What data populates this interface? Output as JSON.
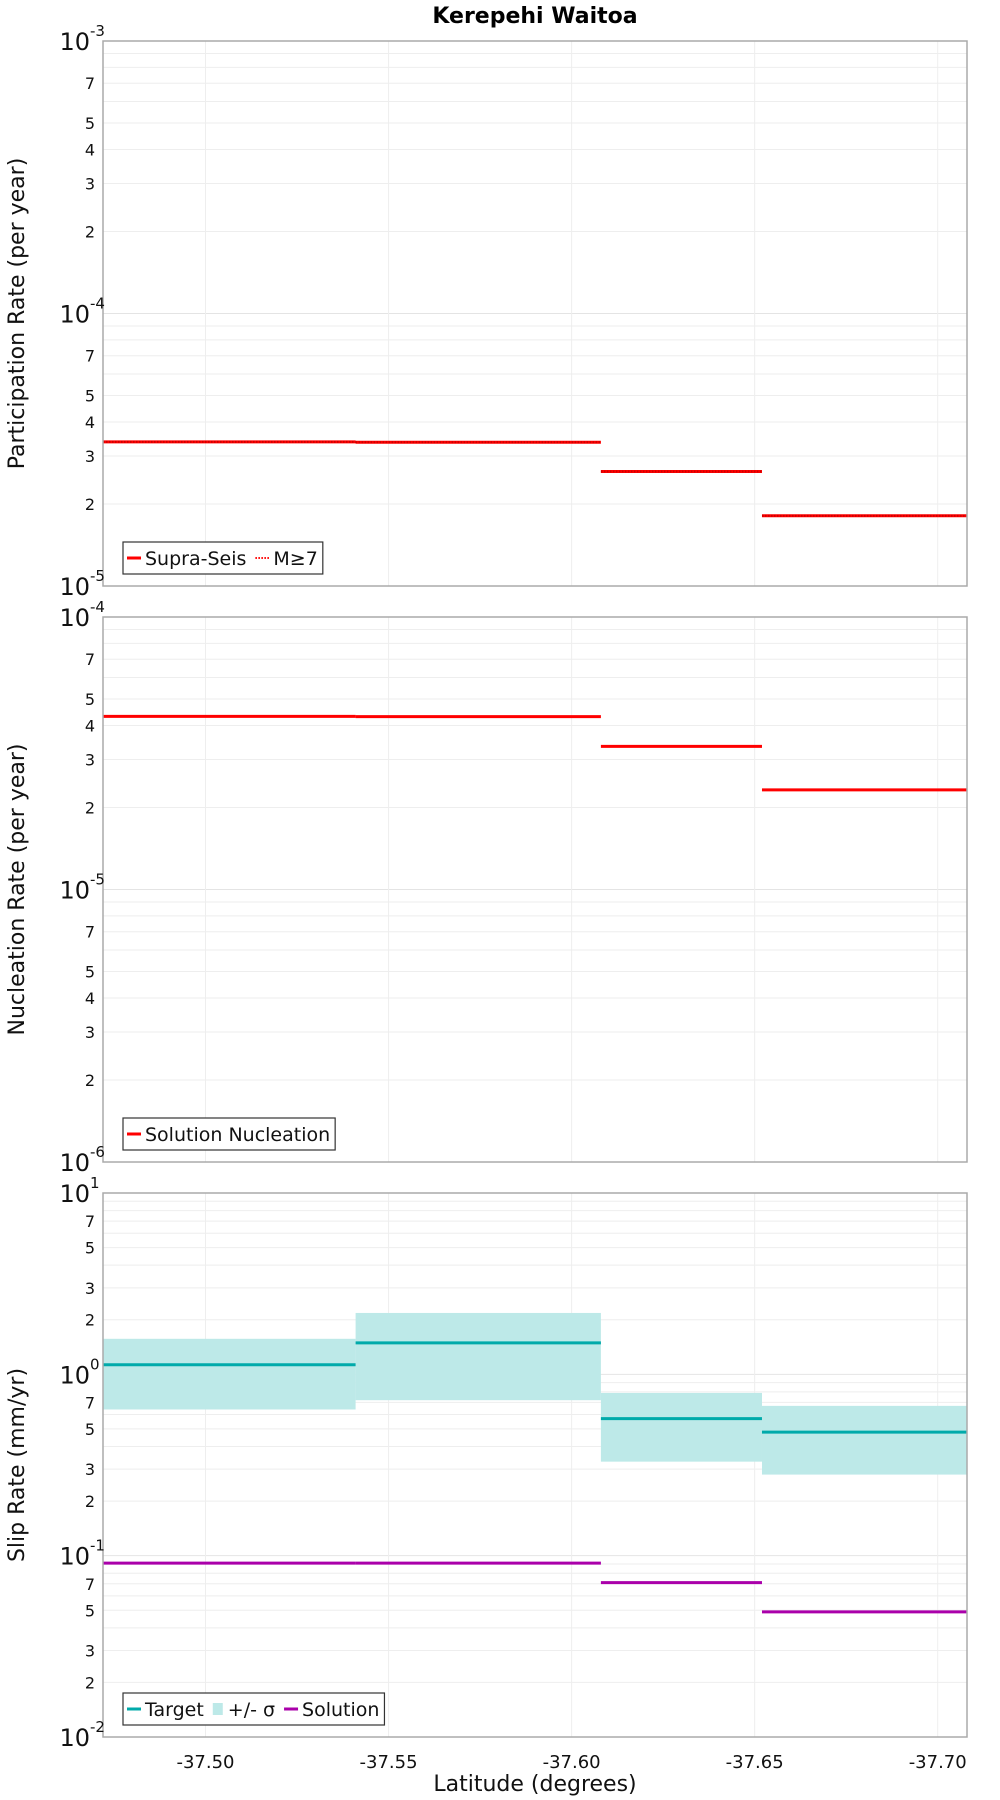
{
  "chart_data": [
    {
      "type": "line",
      "title": "Kerepehi Waitoa",
      "xlabel": "Latitude (degrees)",
      "ylabel": "Participation Rate (per year)",
      "yscale": "log",
      "ylim": [
        1e-05,
        0.001
      ],
      "xlim": [
        -37.472,
        -37.708
      ],
      "xticks": [
        "-37.50",
        "-37.55",
        "-37.60",
        "-37.65",
        "-37.70"
      ],
      "yticks_major": [
        {
          "base": "10",
          "exp": "-3"
        },
        {
          "base": "10",
          "exp": "-4"
        },
        {
          "base": "10",
          "exp": "-5"
        }
      ],
      "legend": [
        "Supra-Seis",
        "M≥7"
      ],
      "series": [
        {
          "name": "Supra-Seis",
          "color": "#ff0000",
          "style": "solid",
          "segments": [
            [
              -37.472,
              -37.541,
              3.38e-05
            ],
            [
              -37.541,
              -37.608,
              3.37e-05
            ],
            [
              -37.608,
              -37.652,
              2.63e-05
            ],
            [
              -37.652,
              -37.708,
              1.81e-05
            ]
          ]
        },
        {
          "name": "M≥7",
          "color": "#ff0000",
          "style": "dotted",
          "segments": [
            [
              -37.472,
              -37.541,
              3.38e-05
            ],
            [
              -37.541,
              -37.608,
              3.37e-05
            ],
            [
              -37.608,
              -37.652,
              2.63e-05
            ],
            [
              -37.652,
              -37.708,
              1.81e-05
            ]
          ]
        }
      ]
    },
    {
      "type": "line",
      "xlabel": "Latitude (degrees)",
      "ylabel": "Nucleation Rate (per year)",
      "yscale": "log",
      "ylim": [
        1e-06,
        0.0001
      ],
      "yticks_major": [
        {
          "base": "10",
          "exp": "-4"
        },
        {
          "base": "10",
          "exp": "-5"
        },
        {
          "base": "10",
          "exp": "-6"
        }
      ],
      "legend": [
        "Solution Nucleation"
      ],
      "series": [
        {
          "name": "Solution Nucleation",
          "color": "#ff0000",
          "style": "solid",
          "segments": [
            [
              -37.472,
              -37.541,
              4.32e-05
            ],
            [
              -37.541,
              -37.608,
              4.31e-05
            ],
            [
              -37.608,
              -37.652,
              3.35e-05
            ],
            [
              -37.652,
              -37.708,
              2.32e-05
            ]
          ]
        }
      ]
    },
    {
      "type": "area",
      "xlabel": "Latitude (degrees)",
      "ylabel": "Slip Rate (mm/yr)",
      "yscale": "log",
      "ylim": [
        0.01,
        10
      ],
      "yticks_major": [
        {
          "base": "10",
          "exp": "1"
        },
        {
          "base": "10",
          "exp": "0"
        },
        {
          "base": "10",
          "exp": "-1"
        },
        {
          "base": "10",
          "exp": "-2"
        }
      ],
      "legend": [
        "Target",
        "+/- σ",
        "Solution"
      ],
      "series": [
        {
          "name": "Target",
          "color": "#00aaaa",
          "style": "solid",
          "segments": [
            [
              -37.472,
              -37.541,
              1.13
            ],
            [
              -37.541,
              -37.608,
              1.49
            ],
            [
              -37.608,
              -37.652,
              0.57
            ],
            [
              -37.652,
              -37.708,
              0.48
            ]
          ]
        },
        {
          "name": "+/- σ",
          "color": "#bde9e8",
          "style": "band",
          "bands": [
            [
              -37.472,
              -37.541,
              0.64,
              1.57
            ],
            [
              -37.541,
              -37.608,
              0.72,
              2.18
            ],
            [
              -37.608,
              -37.652,
              0.33,
              0.79
            ],
            [
              -37.652,
              -37.708,
              0.28,
              0.67
            ]
          ]
        },
        {
          "name": "Solution",
          "color": "#aa00aa",
          "style": "solid",
          "segments": [
            [
              -37.472,
              -37.541,
              0.091
            ],
            [
              -37.541,
              -37.608,
              0.091
            ],
            [
              -37.608,
              -37.652,
              0.071
            ],
            [
              -37.652,
              -37.708,
              0.049
            ]
          ]
        }
      ]
    }
  ]
}
